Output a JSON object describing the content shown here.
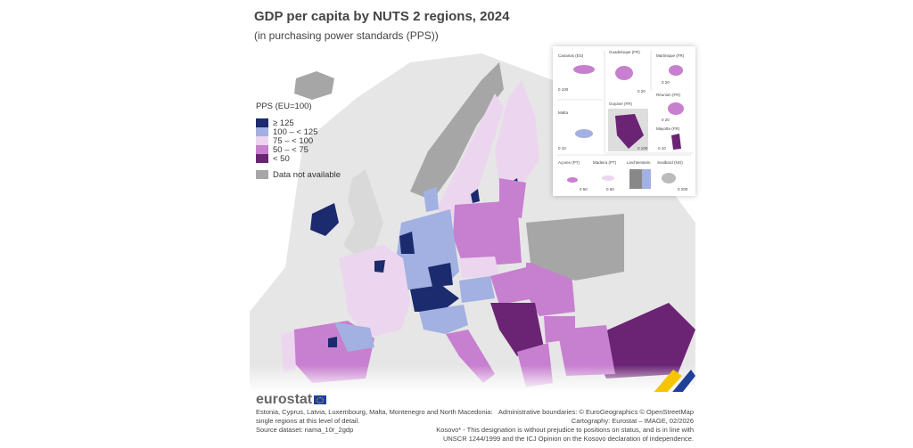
{
  "title": "GDP per capita by NUTS 2 regions, 2024",
  "subtitle": "(in purchasing power standards (PPS))",
  "legend": {
    "title": "PPS (EU=100)",
    "classes": [
      {
        "label": "≥ 125",
        "color": "#1c2a6e"
      },
      {
        "label": "100 – < 125",
        "color": "#a2b0e2"
      },
      {
        "label": "75 – < 100",
        "color": "#ecd5ee"
      },
      {
        "label": "50 – < 75",
        "color": "#c77fcf"
      },
      {
        "label": "< 50",
        "color": "#6b2474"
      }
    ],
    "na_label": "Data not available",
    "na_color": "#a6a6a6"
  },
  "insets": [
    {
      "name": "Canarias (ES)",
      "scale": "0  100"
    },
    {
      "name": "Guadeloupe (FR)",
      "scale": "0  20"
    },
    {
      "name": "Martinique (FR)",
      "scale": "0  20"
    },
    {
      "name": "Malta",
      "scale": "0  10"
    },
    {
      "name": "Guyane (FR)",
      "scale": "0  100"
    },
    {
      "name": "Réunion (FR)",
      "scale": "0  20"
    },
    {
      "name": "Mayotte (FR)",
      "scale": "0  10"
    },
    {
      "name": "Açores (PT)",
      "scale": "0  50"
    },
    {
      "name": "Madeira (PT)",
      "scale": "0  50"
    },
    {
      "name": "Liechtenstein",
      "scale": ""
    },
    {
      "name": "Svalbard (NO)",
      "scale": "0  200"
    }
  ],
  "logo": "eurostat",
  "notes_left": [
    "Estonia, Cyprus, Latvia, Luxembourg, Malta, Montenegro and North Macedonia:",
    "single regions at this level of detail.",
    "Source dataset: nama_10r_2gdp"
  ],
  "notes_right": [
    "Administrative boundaries: © EuroGeographics © OpenStreetMap",
    "Cartography: Eurostat – IMAGE, 02/2026",
    "Kosovo* - This designation is without prejudice to positions on status, and is in line with",
    "UNSCR 1244/1999 and the ICJ Opinion on the Kosovo declaration of independence."
  ]
}
